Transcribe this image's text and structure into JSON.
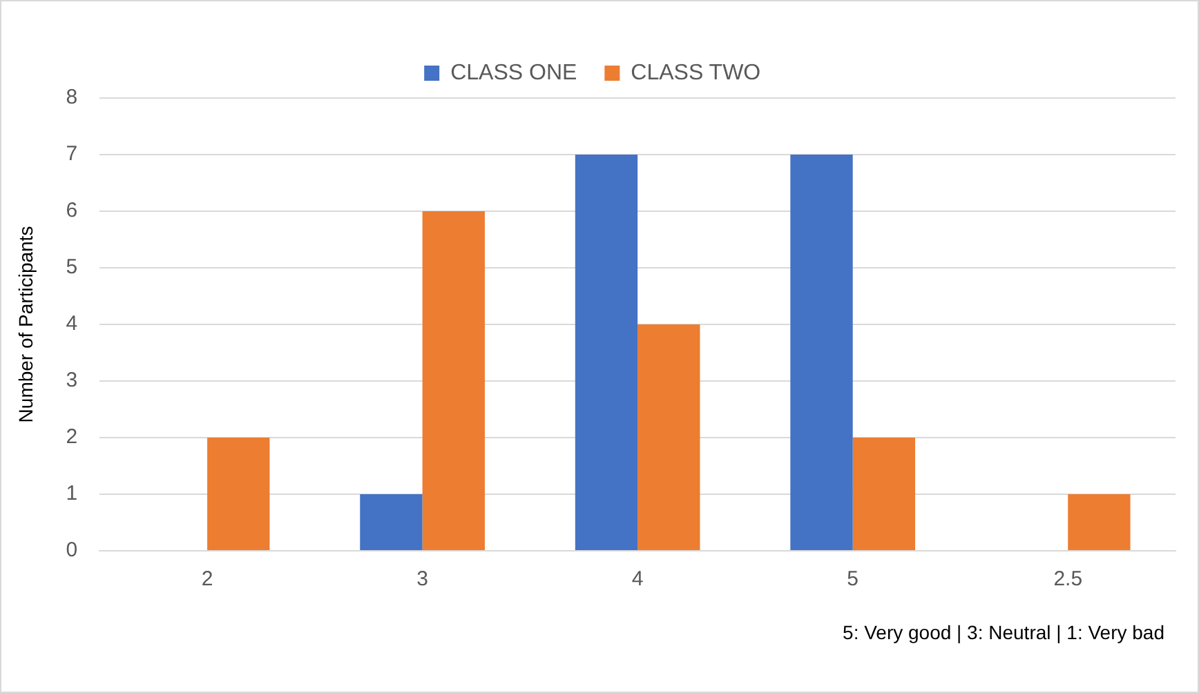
{
  "chart_data": {
    "type": "bar",
    "ylabel": "Number of Participants",
    "categories": [
      "2",
      "3",
      "4",
      "5",
      "2.5"
    ],
    "series": [
      {
        "name": "CLASS ONE",
        "color": "#4472c4",
        "values": [
          0,
          1,
          7,
          7,
          0
        ]
      },
      {
        "name": "CLASS TWO",
        "color": "#ed7d31",
        "values": [
          2,
          6,
          4,
          2,
          1
        ]
      }
    ],
    "ylim": [
      0,
      8
    ],
    "yticks": [
      0,
      1,
      2,
      3,
      4,
      5,
      6,
      7,
      8
    ],
    "grid": "y",
    "legend": "top",
    "annotations": [
      "5: Very good | 3: Neutral | 1: Very bad"
    ]
  }
}
